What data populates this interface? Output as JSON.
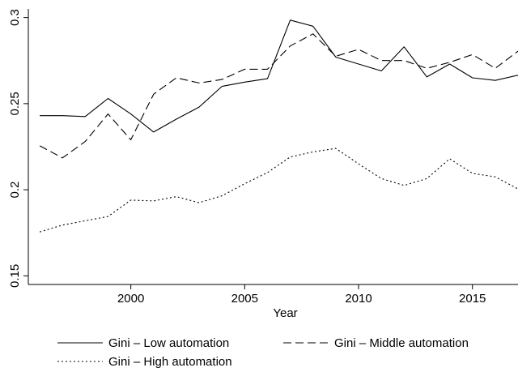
{
  "chart_data": {
    "type": "line",
    "title": "",
    "xlabel": "Year",
    "ylabel": "",
    "xlim": [
      1995.5,
      2017
    ],
    "ylim": [
      0.145,
      0.305
    ],
    "x_ticks": [
      2000,
      2005,
      2010,
      2015
    ],
    "x_tick_labels": [
      "2000",
      "2005",
      "2010",
      "2015"
    ],
    "y_ticks": [
      0.15,
      0.2,
      0.25,
      0.3
    ],
    "y_tick_labels": [
      "0.15",
      "0.2",
      "0.25",
      "0.3"
    ],
    "grid": false,
    "legend_placement": "bottom",
    "x": [
      1996,
      1997,
      1998,
      1999,
      2000,
      2001,
      2002,
      2003,
      2004,
      2005,
      2006,
      2007,
      2008,
      2009,
      2010,
      2011,
      2012,
      2013,
      2014,
      2015,
      2016,
      2017
    ],
    "series": [
      {
        "name": "Gini – Low automation",
        "style": "solid",
        "color": "#000000",
        "values": [
          0.243,
          0.243,
          0.2425,
          0.253,
          0.244,
          0.2335,
          0.241,
          0.248,
          0.26,
          0.2625,
          0.2645,
          0.2985,
          0.295,
          0.277,
          0.273,
          0.269,
          0.283,
          0.2655,
          0.273,
          0.265,
          0.2635,
          0.2665
        ]
      },
      {
        "name": "Gini – Middle automation",
        "style": "dashed",
        "color": "#000000",
        "values": [
          0.2255,
          0.2185,
          0.228,
          0.244,
          0.229,
          0.2555,
          0.265,
          0.262,
          0.264,
          0.27,
          0.27,
          0.2835,
          0.2905,
          0.2775,
          0.2815,
          0.275,
          0.275,
          0.2705,
          0.274,
          0.2785,
          0.2705,
          0.2805
        ]
      },
      {
        "name": "Gini – High automation",
        "style": "dotted",
        "color": "#000000",
        "values": [
          0.1755,
          0.1795,
          0.182,
          0.1845,
          0.194,
          0.1935,
          0.196,
          0.1925,
          0.1965,
          0.2035,
          0.21,
          0.219,
          0.222,
          0.224,
          0.215,
          0.2065,
          0.2025,
          0.2065,
          0.218,
          0.2095,
          0.2075,
          0.2005
        ]
      }
    ]
  }
}
